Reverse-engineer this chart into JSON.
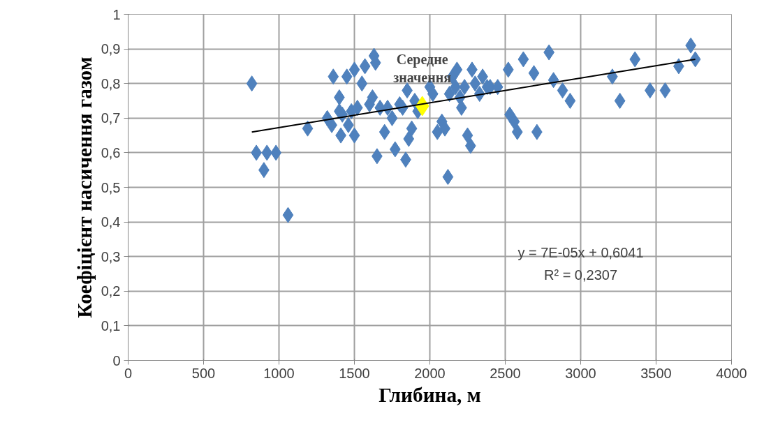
{
  "chart_data": {
    "type": "scatter",
    "xlabel": "Глибина, м",
    "ylabel": "Коефіцієнт насичення газом",
    "xlim": [
      0,
      4000
    ],
    "ylim": [
      0,
      1
    ],
    "xticks": [
      0,
      500,
      1000,
      1500,
      2000,
      2500,
      3000,
      3500,
      4000
    ],
    "yticks": [
      0,
      {
        "value": 0.1,
        "label": "0,1"
      },
      {
        "value": 0.2,
        "label": "0,2"
      },
      {
        "value": 0.3,
        "label": "0,3"
      },
      {
        "value": 0.4,
        "label": "0,4"
      },
      {
        "value": 0.5,
        "label": "0,5"
      },
      {
        "value": 0.6,
        "label": "0,6"
      },
      {
        "value": 0.7,
        "label": "0,7"
      },
      {
        "value": 0.8,
        "label": "0,8"
      },
      {
        "value": 0.9,
        "label": "0,9"
      },
      1
    ],
    "grid": true,
    "marker": "diamond",
    "series": [
      {
        "color": "#4f81bd",
        "x": [
          820,
          850,
          900,
          920,
          980,
          1060,
          1190,
          1320,
          1350,
          1360,
          1400,
          1400,
          1410,
          1420,
          1450,
          1460,
          1480,
          1500,
          1500,
          1520,
          1550,
          1570,
          1600,
          1620,
          1630,
          1640,
          1650,
          1670,
          1700,
          1720,
          1750,
          1770,
          1800,
          1820,
          1840,
          1850,
          1860,
          1880,
          1900,
          1920,
          2000,
          2020,
          2050,
          2080,
          2100,
          2120,
          2130,
          2150,
          2170,
          2180,
          2200,
          2210,
          2230,
          2250,
          2270,
          2280,
          2300,
          2330,
          2350,
          2380,
          2400,
          2450,
          2520,
          2530,
          2560,
          2580,
          2620,
          2690,
          2710,
          2790,
          2820,
          2880,
          2930,
          3210,
          3260,
          3360,
          3460,
          3560,
          3650,
          3730,
          3760
        ],
        "values": [
          0.8,
          0.6,
          0.55,
          0.6,
          0.6,
          0.42,
          0.67,
          0.7,
          0.68,
          0.82,
          0.72,
          0.76,
          0.65,
          0.71,
          0.82,
          0.68,
          0.72,
          0.65,
          0.84,
          0.73,
          0.8,
          0.85,
          0.74,
          0.76,
          0.88,
          0.86,
          0.59,
          0.73,
          0.66,
          0.73,
          0.7,
          0.61,
          0.74,
          0.73,
          0.58,
          0.78,
          0.64,
          0.67,
          0.75,
          0.72,
          0.79,
          0.77,
          0.66,
          0.69,
          0.67,
          0.53,
          0.77,
          0.82,
          0.79,
          0.84,
          0.76,
          0.73,
          0.79,
          0.65,
          0.62,
          0.84,
          0.8,
          0.77,
          0.82,
          0.79,
          0.79,
          0.79,
          0.84,
          0.71,
          0.69,
          0.66,
          0.87,
          0.83,
          0.66,
          0.89,
          0.81,
          0.78,
          0.75,
          0.82,
          0.75,
          0.87,
          0.78,
          0.78,
          0.85,
          0.91,
          0.87
        ]
      },
      {
        "color": "#ffff00",
        "x": [
          1950
        ],
        "values": [
          0.735
        ]
      },
      {
        "type": "line",
        "marker": "none",
        "color": "#000000",
        "x": [
          820,
          3760
        ],
        "values": [
          0.66,
          0.87
        ]
      }
    ],
    "annotations": [
      "Середне значення",
      "y = 7E-05x + 0,6041",
      "R² = 0,2307"
    ]
  }
}
